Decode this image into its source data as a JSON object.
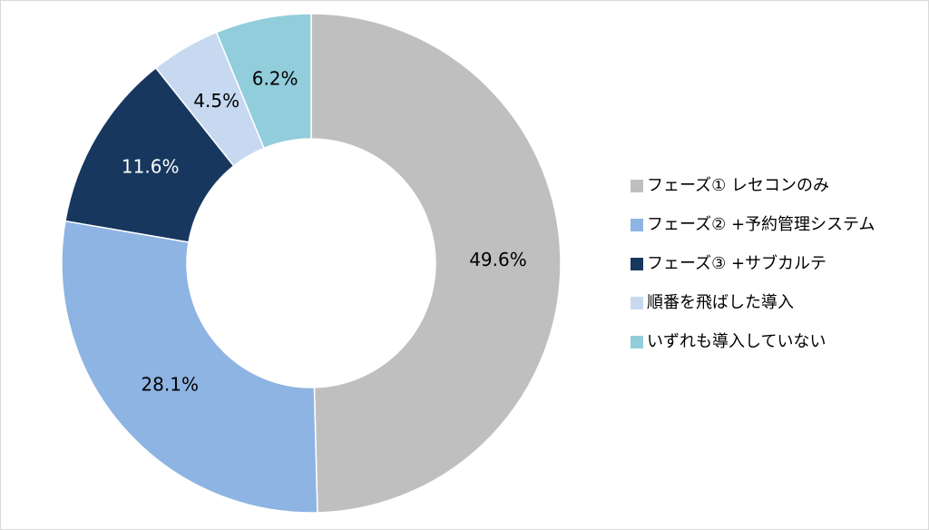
{
  "chart_data": {
    "type": "donut",
    "categories": [
      "フェーズ① レセコンのみ",
      "フェーズ② +予約管理システム",
      "フェーズ③ +サブカルテ",
      "順番を飛ばした導入",
      "いずれも導入していない"
    ],
    "values": [
      49.6,
      28.1,
      11.6,
      4.5,
      6.2
    ],
    "value_labels": [
      "49.6%",
      "28.1%",
      "11.6%",
      "4.5%",
      "6.2%"
    ],
    "colors": [
      "#bfbfbf",
      "#8eb4e3",
      "#17375e",
      "#c6d9f1",
      "#92cddc"
    ],
    "label_colors": [
      "#000000",
      "#000000",
      "#ffffff",
      "#000000",
      "#000000"
    ],
    "legend": "right"
  }
}
